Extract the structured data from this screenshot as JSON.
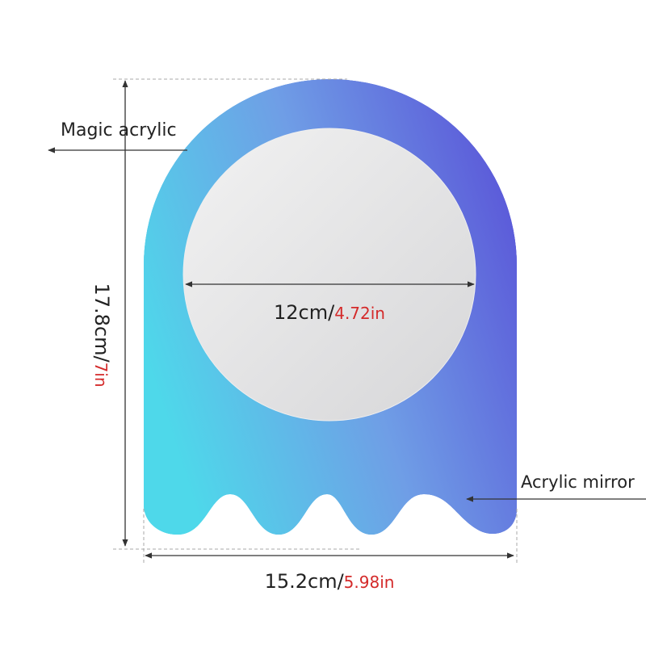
{
  "labels": {
    "magic": "Magic acrylic",
    "mirror": "Acrylic mirror"
  },
  "dims": {
    "diameter": {
      "cm": "12cm/",
      "inch": "4.72in"
    },
    "height": {
      "cm": "17.8cm/",
      "inch": "7in"
    },
    "width": {
      "cm": "15.2cm/",
      "inch": "5.98in"
    }
  }
}
